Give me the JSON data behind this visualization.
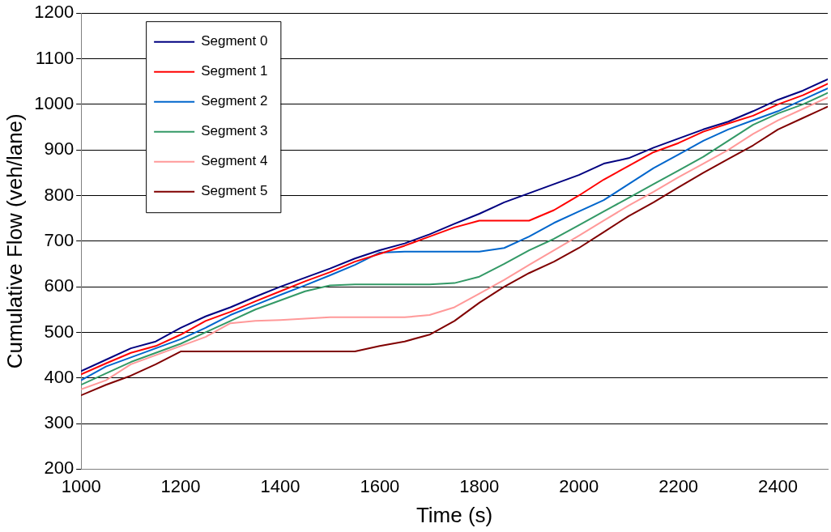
{
  "chart_data": {
    "type": "line",
    "xlabel": "Time (s)",
    "ylabel": "Cumulative Flow (veh/lane)",
    "x": [
      1000,
      1050,
      1100,
      1150,
      1200,
      1250,
      1300,
      1350,
      1400,
      1450,
      1500,
      1550,
      1600,
      1650,
      1700,
      1750,
      1800,
      1850,
      1900,
      1950,
      2000,
      2050,
      2100,
      2150,
      2200,
      2250,
      2300,
      2350,
      2400,
      2450,
      2500
    ],
    "series": [
      {
        "name": "Segment 0",
        "color": "#000080",
        "values": [
          415,
          440,
          465,
          480,
          510,
          535,
          555,
          578,
          600,
          620,
          640,
          662,
          680,
          695,
          715,
          738,
          760,
          785,
          805,
          825,
          845,
          870,
          882,
          905,
          925,
          945,
          962,
          985,
          1010,
          1030,
          1055
        ]
      },
      {
        "name": "Segment 1",
        "color": "#ff0000",
        "values": [
          408,
          432,
          455,
          470,
          495,
          525,
          545,
          568,
          590,
          612,
          632,
          655,
          672,
          690,
          710,
          730,
          745,
          745,
          745,
          768,
          800,
          835,
          865,
          895,
          915,
          940,
          958,
          975,
          1000,
          1020,
          1045
        ]
      },
      {
        "name": "Segment 2",
        "color": "#0066cc",
        "values": [
          395,
          425,
          445,
          465,
          485,
          510,
          538,
          560,
          582,
          603,
          625,
          648,
          675,
          677,
          677,
          677,
          677,
          685,
          710,
          740,
          765,
          790,
          825,
          860,
          890,
          920,
          945,
          965,
          985,
          1010,
          1035
        ]
      },
      {
        "name": "Segment 3",
        "color": "#339966",
        "values": [
          385,
          410,
          435,
          455,
          475,
          500,
          525,
          550,
          570,
          590,
          603,
          605,
          605,
          605,
          605,
          608,
          622,
          650,
          680,
          705,
          735,
          765,
          795,
          825,
          855,
          885,
          920,
          955,
          980,
          1000,
          1025
        ]
      },
      {
        "name": "Segment 4",
        "color": "#ff9999",
        "values": [
          375,
          395,
          430,
          450,
          470,
          490,
          520,
          525,
          527,
          530,
          533,
          533,
          533,
          533,
          538,
          555,
          585,
          615,
          648,
          680,
          712,
          745,
          778,
          808,
          840,
          870,
          900,
          935,
          965,
          990,
          1015
        ]
      },
      {
        "name": "Segment 5",
        "color": "#800000",
        "values": [
          362,
          385,
          405,
          430,
          458,
          458,
          458,
          458,
          458,
          458,
          458,
          458,
          470,
          480,
          495,
          525,
          565,
          600,
          630,
          655,
          685,
          720,
          755,
          785,
          818,
          850,
          880,
          910,
          945,
          970,
          995
        ]
      }
    ],
    "xlim": [
      1000,
      2500
    ],
    "xticks": [
      1000,
      1200,
      1400,
      1600,
      1800,
      2000,
      2200,
      2400
    ],
    "ylim": [
      200,
      1200
    ],
    "yticks": [
      200,
      300,
      400,
      500,
      600,
      700,
      800,
      900,
      1000,
      1100,
      1200
    ],
    "grid": "y",
    "legend": "top left",
    "marker": "none",
    "line_style": "solid"
  }
}
